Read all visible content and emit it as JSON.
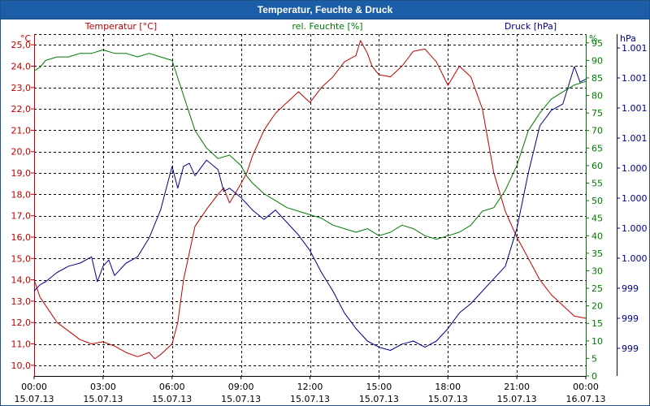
{
  "window": {
    "title": "Temperatur, Feuchte & Druck"
  },
  "chart_data": {
    "type": "line",
    "title": "Temperatur, Feuchte & Druck",
    "grid": true,
    "colors": {
      "temperature": "#c00000",
      "humidity": "#007a00",
      "pressure": "#00008b",
      "grid": "#000000"
    },
    "x_ticks": [
      {
        "time": "00:00",
        "date": "15.07.13"
      },
      {
        "time": "03:00",
        "date": "15.07.13"
      },
      {
        "time": "06:00",
        "date": "15.07.13"
      },
      {
        "time": "09:00",
        "date": "15.07.13"
      },
      {
        "time": "12:00",
        "date": "15.07.13"
      },
      {
        "time": "15:00",
        "date": "15.07.13"
      },
      {
        "time": "18:00",
        "date": "15.07.13"
      },
      {
        "time": "21:00",
        "date": "15.07.13"
      },
      {
        "time": "00:00",
        "date": "16.07.13"
      }
    ],
    "x_range_hours": [
      0,
      24
    ],
    "axes": {
      "temperature": {
        "label": "Temperatur [°C]",
        "unit": "°C",
        "range": [
          9.5,
          25.5
        ],
        "ticks": [
          "10,0",
          "11,0",
          "12,0",
          "13,0",
          "14,0",
          "15,0",
          "16,0",
          "17,0",
          "18,0",
          "19,0",
          "20,0",
          "21,0",
          "22,0",
          "23,0",
          "24,0",
          "25,0"
        ],
        "tick_values": [
          10,
          11,
          12,
          13,
          14,
          15,
          16,
          17,
          18,
          19,
          20,
          21,
          22,
          23,
          24,
          25
        ]
      },
      "humidity": {
        "label": "rel. Feuchte [%]",
        "unit": "%",
        "range": [
          0,
          97.5
        ],
        "ticks": [
          "0",
          "5",
          "10",
          "15",
          "20",
          "25",
          "30",
          "35",
          "40",
          "45",
          "50",
          "55",
          "60",
          "65",
          "70",
          "75",
          "80",
          "85",
          "90",
          "95"
        ],
        "tick_values": [
          0,
          5,
          10,
          15,
          20,
          25,
          30,
          35,
          40,
          45,
          50,
          55,
          60,
          65,
          70,
          75,
          80,
          85,
          90,
          95
        ]
      },
      "pressure": {
        "label": "Druck [hPa]",
        "unit": "hPa",
        "ticks": [
          "999",
          "999",
          "999",
          "1.000",
          "1.000",
          "1.000",
          "1.000",
          "1.001",
          "1.001",
          "1.001",
          "1.001"
        ]
      }
    },
    "series": [
      {
        "name": "Temperatur [°C]",
        "axis": "temperature",
        "x": [
          0,
          0.25,
          0.5,
          1,
          1.5,
          2,
          2.5,
          3,
          3.5,
          4,
          4.5,
          5,
          5.25,
          5.5,
          6,
          6.25,
          6.5,
          7,
          7.5,
          8,
          8.25,
          8.5,
          9,
          9.25,
          9.5,
          10,
          10.5,
          11,
          11.5,
          12,
          12.5,
          13,
          13.5,
          14,
          14.2,
          14.5,
          14.7,
          15,
          15.5,
          16,
          16.5,
          17,
          17.5,
          18,
          18.5,
          19,
          19.5,
          20,
          20.5,
          21,
          21.5,
          22,
          22.5,
          23,
          23.5,
          24
        ],
        "y": [
          14.0,
          13.2,
          12.8,
          12.0,
          11.6,
          11.2,
          11.0,
          11.1,
          10.9,
          10.6,
          10.4,
          10.6,
          10.3,
          10.5,
          11.0,
          12.0,
          14.0,
          16.5,
          17.3,
          18.0,
          18.3,
          17.6,
          18.5,
          19.0,
          19.8,
          21.0,
          21.8,
          22.3,
          22.8,
          22.3,
          23.0,
          23.5,
          24.2,
          24.5,
          25.2,
          24.6,
          24.0,
          23.6,
          23.5,
          24.0,
          24.7,
          24.8,
          24.2,
          23.1,
          24.0,
          23.5,
          22.0,
          19.0,
          17.2,
          16.0,
          15.0,
          14.0,
          13.3,
          12.8,
          12.3,
          12.2
        ]
      },
      {
        "name": "rel. Feuchte [%]",
        "axis": "humidity",
        "x": [
          0,
          0.25,
          0.5,
          1,
          1.5,
          2,
          2.5,
          3,
          3.5,
          4,
          4.5,
          5,
          5.5,
          6,
          6.25,
          6.5,
          7,
          7.5,
          8,
          8.5,
          9,
          9.25,
          9.5,
          10,
          10.5,
          11,
          11.5,
          12,
          12.5,
          13,
          13.5,
          14,
          14.5,
          15,
          15.5,
          16,
          16.5,
          17,
          17.5,
          18,
          18.5,
          19,
          19.5,
          20,
          20.5,
          21,
          21.5,
          22,
          22.5,
          23,
          23.5,
          24
        ],
        "y": [
          87,
          88,
          90,
          91,
          91,
          92,
          92,
          93,
          92,
          92,
          91,
          92,
          91,
          90,
          85,
          80,
          70,
          65,
          62,
          63,
          60,
          57,
          55,
          52,
          50,
          48,
          47,
          46,
          45,
          43,
          42,
          41,
          42,
          40,
          41,
          43,
          42,
          40,
          39,
          40,
          41,
          43,
          47,
          48,
          53,
          60,
          70,
          75,
          79,
          81,
          83,
          84
        ]
      },
      {
        "name": "Druck [hPa]",
        "axis": "pressure",
        "x": [
          0,
          0.25,
          0.5,
          1,
          1.5,
          2,
          2.5,
          2.75,
          3,
          3.25,
          3.5,
          4,
          4.5,
          5,
          5.5,
          6,
          6.25,
          6.5,
          6.75,
          7,
          7.5,
          8,
          8.25,
          8.5,
          9,
          9.25,
          9.5,
          10,
          10.5,
          11,
          11.5,
          12,
          12.5,
          13,
          13.5,
          14,
          14.5,
          15,
          15.5,
          16,
          16.5,
          17,
          17.5,
          18,
          18.5,
          19,
          19.5,
          20,
          20.5,
          21,
          21.5,
          22,
          22.5,
          23,
          23.25,
          23.5,
          23.75,
          24
        ],
        "y": [
          0.22,
          0.24,
          0.25,
          0.28,
          0.3,
          0.31,
          0.33,
          0.25,
          0.3,
          0.32,
          0.27,
          0.31,
          0.33,
          0.39,
          0.48,
          0.62,
          0.55,
          0.62,
          0.63,
          0.59,
          0.64,
          0.61,
          0.54,
          0.55,
          0.52,
          0.5,
          0.48,
          0.45,
          0.48,
          0.44,
          0.4,
          0.35,
          0.28,
          0.22,
          0.15,
          0.1,
          0.06,
          0.04,
          0.03,
          0.05,
          0.06,
          0.04,
          0.06,
          0.1,
          0.15,
          0.18,
          0.22,
          0.26,
          0.3,
          0.42,
          0.6,
          0.75,
          0.8,
          0.82,
          0.88,
          0.94,
          0.89,
          0.9
        ]
      }
    ]
  }
}
